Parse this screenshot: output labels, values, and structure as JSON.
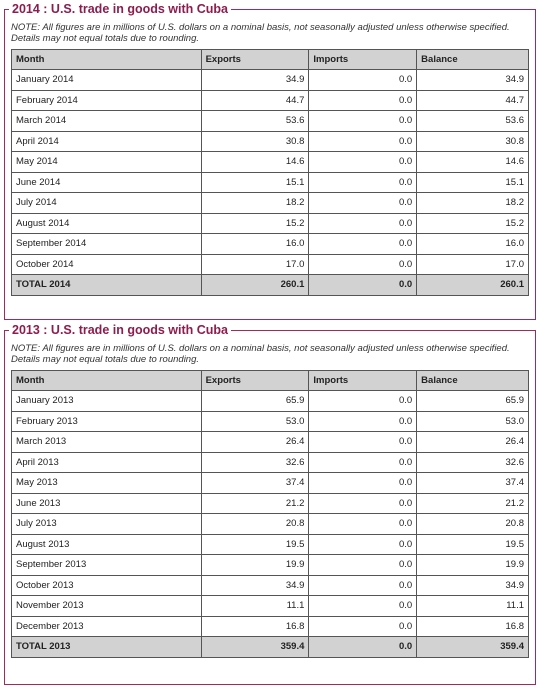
{
  "tables": [
    {
      "title": "2014 : U.S. trade in goods with Cuba",
      "note": "NOTE: All figures are in millions of U.S. dollars on a nominal basis, not seasonally adjusted unless otherwise specified. Details may not equal totals due to rounding.",
      "headers": [
        "Month",
        "Exports",
        "Imports",
        "Balance"
      ],
      "rows": [
        [
          "January 2014",
          "34.9",
          "0.0",
          "34.9"
        ],
        [
          "February 2014",
          "44.7",
          "0.0",
          "44.7"
        ],
        [
          "March 2014",
          "53.6",
          "0.0",
          "53.6"
        ],
        [
          "April 2014",
          "30.8",
          "0.0",
          "30.8"
        ],
        [
          "May 2014",
          "14.6",
          "0.0",
          "14.6"
        ],
        [
          "June 2014",
          "15.1",
          "0.0",
          "15.1"
        ],
        [
          "July 2014",
          "18.2",
          "0.0",
          "18.2"
        ],
        [
          "August 2014",
          "15.2",
          "0.0",
          "15.2"
        ],
        [
          "September 2014",
          "16.0",
          "0.0",
          "16.0"
        ],
        [
          "October 2014",
          "17.0",
          "0.0",
          "17.0"
        ]
      ],
      "total": [
        "TOTAL 2014",
        "260.1",
        "0.0",
        "260.1"
      ]
    },
    {
      "title": "2013 : U.S. trade in goods with Cuba",
      "note": "NOTE: All figures are in millions of U.S. dollars on a nominal basis, not seasonally adjusted unless otherwise specified. Details may not equal totals due to rounding.",
      "headers": [
        "Month",
        "Exports",
        "Imports",
        "Balance"
      ],
      "rows": [
        [
          "January 2013",
          "65.9",
          "0.0",
          "65.9"
        ],
        [
          "February 2013",
          "53.0",
          "0.0",
          "53.0"
        ],
        [
          "March 2013",
          "26.4",
          "0.0",
          "26.4"
        ],
        [
          "April 2013",
          "32.6",
          "0.0",
          "32.6"
        ],
        [
          "May 2013",
          "37.4",
          "0.0",
          "37.4"
        ],
        [
          "June 2013",
          "21.2",
          "0.0",
          "21.2"
        ],
        [
          "July 2013",
          "20.8",
          "0.0",
          "20.8"
        ],
        [
          "August 2013",
          "19.5",
          "0.0",
          "19.5"
        ],
        [
          "September 2013",
          "19.9",
          "0.0",
          "19.9"
        ],
        [
          "October 2013",
          "34.9",
          "0.0",
          "34.9"
        ],
        [
          "November 2013",
          "11.1",
          "0.0",
          "11.1"
        ],
        [
          "December 2013",
          "16.8",
          "0.0",
          "16.8"
        ]
      ],
      "total": [
        "TOTAL 2013",
        "359.4",
        "0.0",
        "359.4"
      ]
    }
  ]
}
